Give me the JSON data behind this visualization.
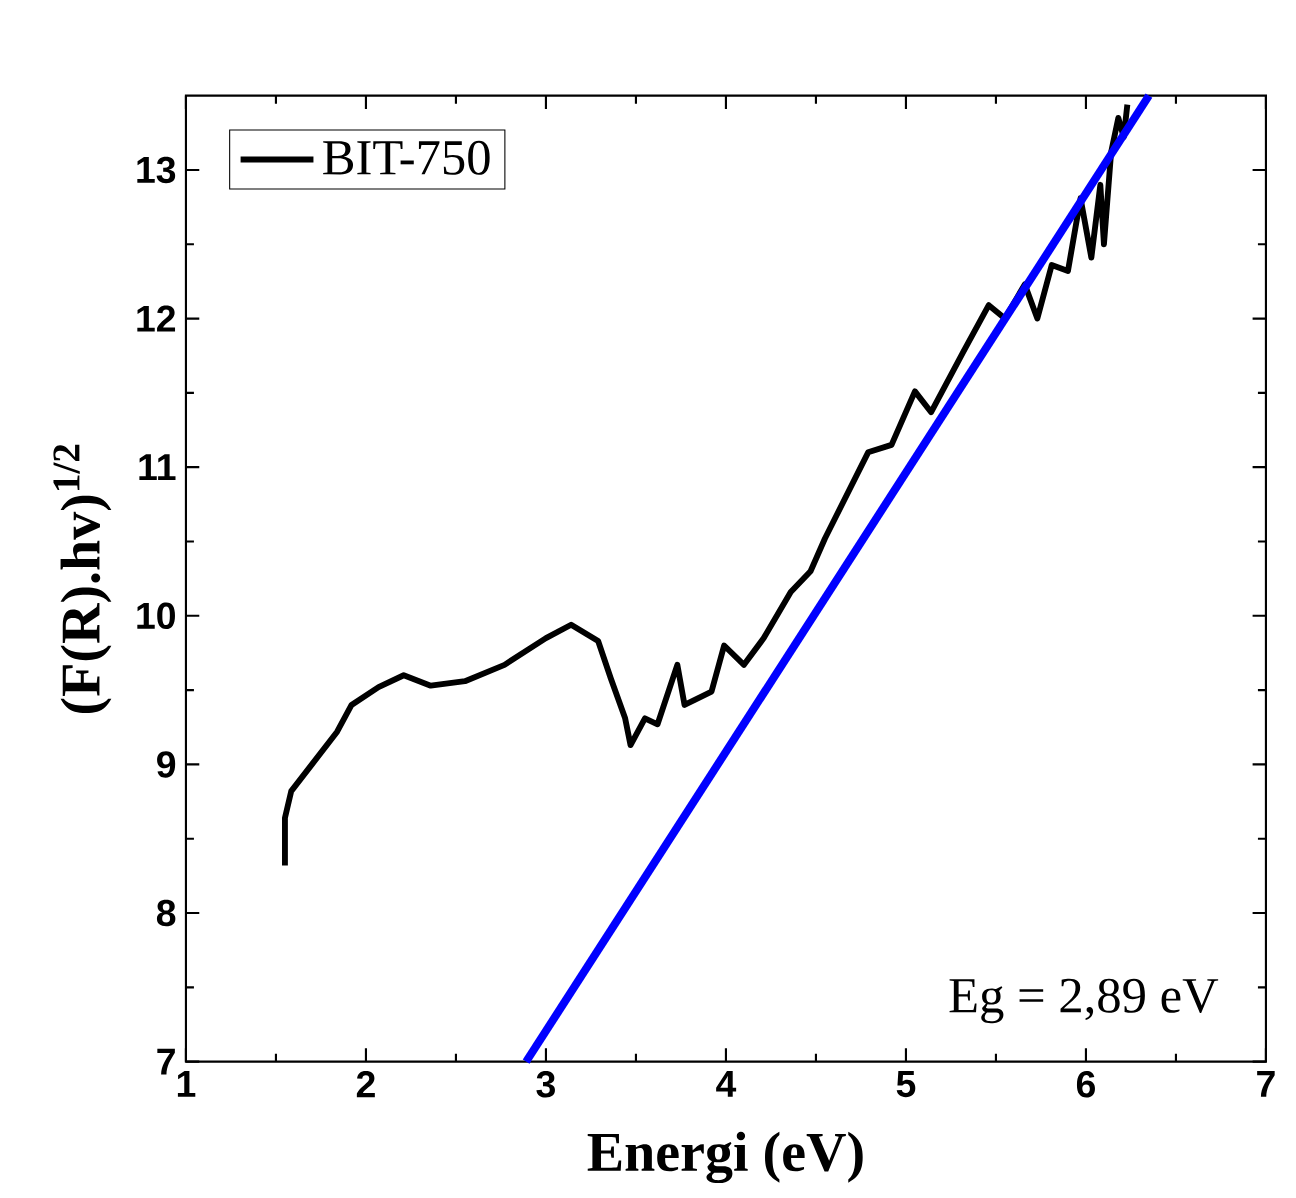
{
  "chart_data": {
    "type": "line",
    "xlabel": "Energi (eV)",
    "ylabel": "(F(R).hv)$^{1/2}$",
    "xlim": [
      1,
      7
    ],
    "ylim": [
      7,
      13.5
    ],
    "xticks": [
      1,
      2,
      3,
      4,
      5,
      6,
      7
    ],
    "yticks": [
      7,
      8,
      9,
      10,
      11,
      12,
      13
    ],
    "grid": false,
    "legend": "top left",
    "marker": "none",
    "line_style": "solid",
    "annotations": [
      "Eg = 2,89 eV"
    ],
    "series": [
      {
        "name": "BIT-750",
        "color": "#000000",
        "x": [
          1.55,
          1.55,
          1.585,
          1.7,
          1.84,
          1.92,
          2.07,
          2.21,
          2.36,
          2.55,
          2.77,
          3.0,
          3.14,
          3.29,
          3.36,
          3.44,
          3.47,
          3.55,
          3.62,
          3.73,
          3.77,
          3.92,
          3.99,
          4.1,
          4.21,
          4.36,
          4.47,
          4.55,
          4.79,
          4.92,
          5.05,
          5.14,
          5.32,
          5.46,
          5.55,
          5.66,
          5.73,
          5.81,
          5.9,
          5.97,
          6.03,
          6.08,
          6.1,
          6.14,
          6.18,
          6.21,
          6.23
        ],
        "values": [
          8.32,
          8.64,
          8.82,
          9.0,
          9.22,
          9.4,
          9.52,
          9.6,
          9.53,
          9.56,
          9.67,
          9.85,
          9.94,
          9.83,
          9.58,
          9.31,
          9.13,
          9.31,
          9.27,
          9.67,
          9.4,
          9.49,
          9.8,
          9.67,
          9.85,
          10.16,
          10.3,
          10.52,
          11.1,
          11.15,
          11.51,
          11.37,
          11.78,
          12.09,
          12.0,
          12.23,
          12.0,
          12.36,
          12.32,
          12.81,
          12.41,
          12.9,
          12.5,
          13.12,
          13.35,
          13.22,
          13.44
        ]
      },
      {
        "type": "line",
        "color": "#0000ff",
        "x": [
          2.89,
          6.35
        ],
        "values": [
          7,
          13.5
        ]
      }
    ]
  }
}
